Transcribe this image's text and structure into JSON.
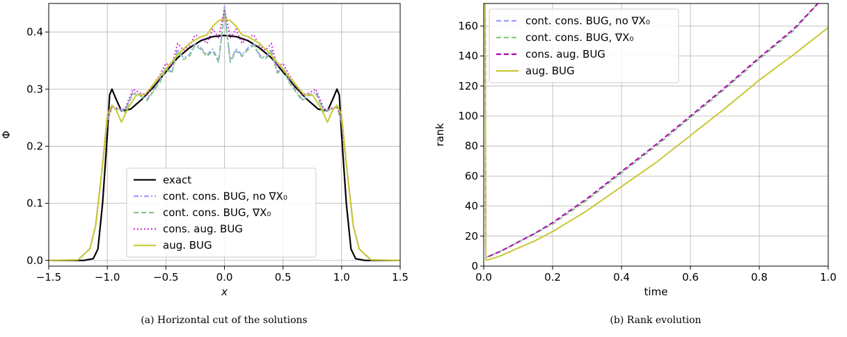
{
  "chart_data": [
    {
      "type": "line",
      "caption": "(a) Horizontal cut of the solutions",
      "xlabel": "x",
      "ylabel": "Φ",
      "xlim": [
        -1.5,
        1.5
      ],
      "ylim": [
        -0.01,
        0.45
      ],
      "xticks": [
        -1.5,
        -1.0,
        -0.5,
        0.0,
        0.5,
        1.0,
        1.5
      ],
      "xtick_labels": [
        "−1.5",
        "−1.0",
        "−0.5",
        "0.0",
        "0.5",
        "1.0",
        "1.5"
      ],
      "yticks": [
        0.0,
        0.1,
        0.2,
        0.3,
        0.4
      ],
      "ytick_labels": [
        "0.0",
        "0.1",
        "0.2",
        "0.3",
        "0.4"
      ],
      "grid": true,
      "legend_position": "lower-center",
      "series": [
        {
          "name": "exact",
          "color": "#000000",
          "style": "solid",
          "x": [
            -1.5,
            -1.2,
            -1.12,
            -1.08,
            -1.04,
            -1.0,
            -0.98,
            -0.96,
            -0.93,
            -0.88,
            -0.8,
            -0.7,
            -0.6,
            -0.5,
            -0.4,
            -0.3,
            -0.2,
            -0.1,
            0.0,
            0.1,
            0.2,
            0.3,
            0.4,
            0.5,
            0.6,
            0.7,
            0.8,
            0.88,
            0.93,
            0.96,
            0.98,
            1.0,
            1.04,
            1.08,
            1.12,
            1.2,
            1.5
          ],
          "y": [
            0.0,
            0.0,
            0.003,
            0.02,
            0.1,
            0.22,
            0.29,
            0.3,
            0.285,
            0.262,
            0.265,
            0.283,
            0.305,
            0.33,
            0.355,
            0.372,
            0.385,
            0.392,
            0.394,
            0.392,
            0.385,
            0.372,
            0.355,
            0.33,
            0.305,
            0.283,
            0.265,
            0.262,
            0.285,
            0.3,
            0.29,
            0.22,
            0.1,
            0.02,
            0.003,
            0.0,
            0.0
          ]
        },
        {
          "name": "cont. cons. BUG, no ∇X₀",
          "color": "#9a9aff",
          "style": "dashdot",
          "x": [
            -1.5,
            -1.25,
            -1.15,
            -1.1,
            -1.05,
            -1.0,
            -0.96,
            -0.9,
            -0.85,
            -0.78,
            -0.72,
            -0.66,
            -0.6,
            -0.55,
            -0.5,
            -0.45,
            -0.4,
            -0.35,
            -0.3,
            -0.25,
            -0.2,
            -0.15,
            -0.1,
            -0.05,
            -0.02,
            0.0,
            0.02,
            0.05,
            0.1,
            0.15,
            0.2,
            0.25,
            0.3,
            0.35,
            0.4,
            0.45,
            0.5,
            0.55,
            0.6,
            0.66,
            0.72,
            0.78,
            0.85,
            0.9,
            0.96,
            1.0,
            1.05,
            1.1,
            1.15,
            1.25,
            1.5
          ],
          "y": [
            0.0,
            0.001,
            0.02,
            0.06,
            0.15,
            0.245,
            0.27,
            0.265,
            0.262,
            0.295,
            0.29,
            0.283,
            0.3,
            0.315,
            0.338,
            0.33,
            0.37,
            0.355,
            0.36,
            0.38,
            0.372,
            0.36,
            0.37,
            0.35,
            0.4,
            0.445,
            0.4,
            0.35,
            0.37,
            0.36,
            0.372,
            0.38,
            0.36,
            0.355,
            0.37,
            0.33,
            0.338,
            0.315,
            0.3,
            0.283,
            0.29,
            0.295,
            0.262,
            0.265,
            0.27,
            0.245,
            0.15,
            0.06,
            0.02,
            0.001,
            0.0
          ]
        },
        {
          "name": "cont. cons. BUG, ∇X₀",
          "color": "#86c986",
          "style": "dashed",
          "x": [
            -1.5,
            -1.25,
            -1.15,
            -1.1,
            -1.05,
            -1.0,
            -0.96,
            -0.9,
            -0.85,
            -0.78,
            -0.72,
            -0.66,
            -0.6,
            -0.55,
            -0.5,
            -0.45,
            -0.4,
            -0.35,
            -0.3,
            -0.25,
            -0.2,
            -0.15,
            -0.1,
            -0.05,
            -0.02,
            0.0,
            0.02,
            0.05,
            0.1,
            0.15,
            0.2,
            0.25,
            0.3,
            0.35,
            0.4,
            0.45,
            0.5,
            0.55,
            0.6,
            0.66,
            0.72,
            0.78,
            0.85,
            0.9,
            0.96,
            1.0,
            1.05,
            1.1,
            1.15,
            1.25,
            1.5
          ],
          "y": [
            0.0,
            0.001,
            0.02,
            0.06,
            0.15,
            0.243,
            0.268,
            0.264,
            0.26,
            0.292,
            0.288,
            0.28,
            0.298,
            0.312,
            0.335,
            0.328,
            0.366,
            0.352,
            0.357,
            0.377,
            0.369,
            0.357,
            0.367,
            0.347,
            0.398,
            0.44,
            0.398,
            0.347,
            0.367,
            0.357,
            0.369,
            0.377,
            0.357,
            0.352,
            0.366,
            0.328,
            0.335,
            0.312,
            0.298,
            0.28,
            0.288,
            0.292,
            0.26,
            0.264,
            0.268,
            0.243,
            0.15,
            0.06,
            0.02,
            0.001,
            0.0
          ]
        },
        {
          "name": "cons. aug. BUG",
          "color": "#cc33cc",
          "style": "dotted",
          "x": [
            -1.5,
            -1.25,
            -1.15,
            -1.1,
            -1.05,
            -1.0,
            -0.96,
            -0.9,
            -0.85,
            -0.78,
            -0.72,
            -0.66,
            -0.6,
            -0.55,
            -0.5,
            -0.45,
            -0.4,
            -0.35,
            -0.3,
            -0.25,
            -0.2,
            -0.15,
            -0.1,
            -0.05,
            -0.02,
            0.0,
            0.02,
            0.05,
            0.1,
            0.15,
            0.2,
            0.25,
            0.3,
            0.35,
            0.4,
            0.45,
            0.5,
            0.55,
            0.6,
            0.66,
            0.72,
            0.78,
            0.85,
            0.9,
            0.96,
            1.0,
            1.05,
            1.1,
            1.15,
            1.25,
            1.5
          ],
          "y": [
            0.0,
            0.001,
            0.02,
            0.06,
            0.15,
            0.245,
            0.27,
            0.265,
            0.265,
            0.3,
            0.293,
            0.29,
            0.31,
            0.325,
            0.345,
            0.34,
            0.38,
            0.368,
            0.375,
            0.395,
            0.39,
            0.38,
            0.405,
            0.39,
            0.42,
            0.44,
            0.42,
            0.39,
            0.405,
            0.38,
            0.39,
            0.395,
            0.375,
            0.368,
            0.38,
            0.34,
            0.345,
            0.325,
            0.31,
            0.29,
            0.293,
            0.3,
            0.265,
            0.265,
            0.27,
            0.245,
            0.15,
            0.06,
            0.02,
            0.001,
            0.0
          ]
        },
        {
          "name": "aug. BUG",
          "color": "#c8c832",
          "style": "solid",
          "x": [
            -1.5,
            -1.25,
            -1.15,
            -1.1,
            -1.05,
            -1.0,
            -0.96,
            -0.92,
            -0.88,
            -0.82,
            -0.75,
            -0.68,
            -0.6,
            -0.5,
            -0.4,
            -0.3,
            -0.2,
            -0.15,
            -0.1,
            -0.05,
            0.0,
            0.05,
            0.1,
            0.15,
            0.2,
            0.3,
            0.4,
            0.5,
            0.6,
            0.68,
            0.75,
            0.82,
            0.88,
            0.92,
            0.96,
            1.0,
            1.05,
            1.1,
            1.15,
            1.25,
            1.5
          ],
          "y": [
            0.0,
            0.001,
            0.02,
            0.06,
            0.15,
            0.255,
            0.272,
            0.262,
            0.242,
            0.268,
            0.29,
            0.29,
            0.31,
            0.335,
            0.36,
            0.38,
            0.392,
            0.395,
            0.41,
            0.42,
            0.423,
            0.42,
            0.41,
            0.395,
            0.392,
            0.38,
            0.36,
            0.335,
            0.31,
            0.29,
            0.29,
            0.268,
            0.242,
            0.262,
            0.272,
            0.255,
            0.15,
            0.06,
            0.02,
            0.001,
            0.0
          ]
        }
      ]
    },
    {
      "type": "line",
      "caption": "(b) Rank evolution",
      "xlabel": "time",
      "ylabel": "rank",
      "xlim": [
        0.0,
        1.0
      ],
      "ylim": [
        0,
        175
      ],
      "xticks": [
        0.0,
        0.2,
        0.4,
        0.6,
        0.8,
        1.0
      ],
      "xtick_labels": [
        "0.0",
        "0.2",
        "0.4",
        "0.6",
        "0.8",
        "1.0"
      ],
      "yticks": [
        0,
        20,
        40,
        60,
        80,
        100,
        120,
        140,
        160
      ],
      "ytick_labels": [
        "0",
        "20",
        "40",
        "60",
        "80",
        "100",
        "120",
        "140",
        "160"
      ],
      "grid": true,
      "legend_position": "top-left",
      "series": [
        {
          "name": "cont. cons. BUG, no  ∇X₀",
          "color": "#9a9aff",
          "style": "dashed",
          "x": [
            0.0,
            0.004,
            0.006,
            0.01,
            0.05,
            0.1,
            0.15,
            0.2,
            0.3,
            0.4,
            0.5,
            0.6,
            0.7,
            0.8,
            0.9,
            0.97
          ],
          "y": [
            175,
            175,
            6,
            6,
            10,
            16,
            22,
            28,
            44,
            62,
            80,
            99,
            118,
            138,
            157,
            175
          ]
        },
        {
          "name": "cont. cons. BUG,  ∇X₀",
          "color": "#86c986",
          "style": "dashed",
          "x": [
            0.0,
            0.004,
            0.006,
            0.01,
            0.05,
            0.1,
            0.15,
            0.2,
            0.3,
            0.4,
            0.5,
            0.6,
            0.7,
            0.8,
            0.9,
            0.97
          ],
          "y": [
            175,
            175,
            6,
            6,
            10,
            16,
            22,
            28,
            44,
            62,
            80,
            99,
            118,
            138,
            157,
            175
          ]
        },
        {
          "name": "cons. aug. BUG",
          "color": "#b000b0",
          "style": "dashed",
          "x": [
            0.0,
            0.004,
            0.006,
            0.01,
            0.05,
            0.1,
            0.15,
            0.2,
            0.3,
            0.4,
            0.5,
            0.6,
            0.7,
            0.8,
            0.9,
            0.97
          ],
          "y": [
            175,
            175,
            5,
            6,
            10,
            16,
            22,
            29,
            45,
            63,
            81,
            100,
            119,
            139,
            158,
            175
          ]
        },
        {
          "name": "aug. BUG",
          "color": "#c8c832",
          "style": "solid",
          "x": [
            0.0,
            0.004,
            0.006,
            0.01,
            0.05,
            0.1,
            0.15,
            0.2,
            0.3,
            0.4,
            0.5,
            0.6,
            0.7,
            0.8,
            0.9,
            1.0
          ],
          "y": [
            175,
            175,
            4,
            4,
            7,
            12,
            17,
            23,
            37,
            53,
            69,
            87,
            105,
            124,
            141,
            159
          ]
        }
      ]
    }
  ]
}
